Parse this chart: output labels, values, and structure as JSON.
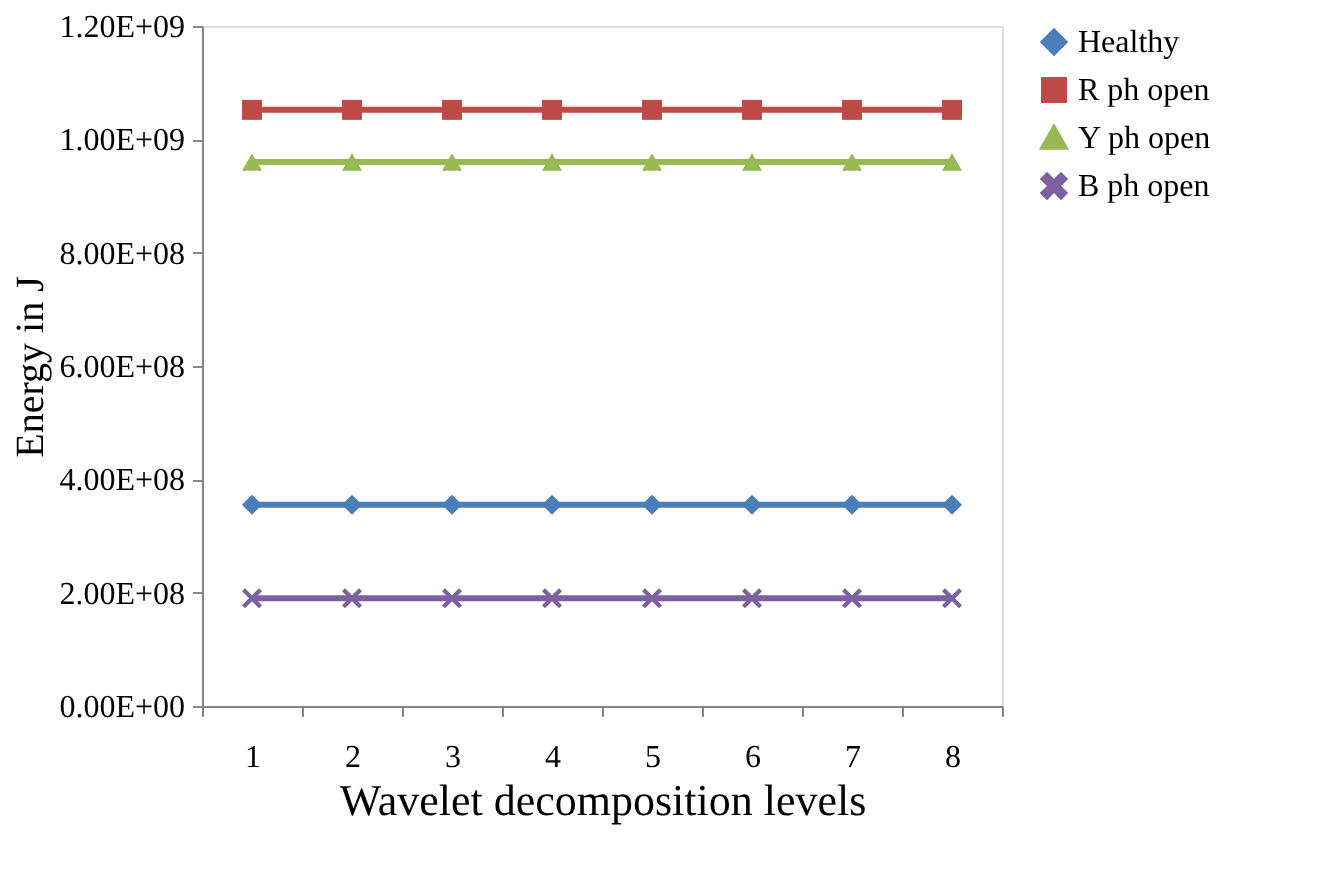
{
  "chart_data": {
    "type": "line",
    "xlabel": "Wavelet decomposition levels",
    "ylabel": "Energy in J",
    "categories": [
      "1",
      "2",
      "3",
      "4",
      "5",
      "6",
      "7",
      "8"
    ],
    "series": [
      {
        "name": "Healthy",
        "color": "#4a7ebb",
        "marker": "diamond",
        "values": [
          355000000,
          355000000,
          355000000,
          355000000,
          355000000,
          355000000,
          355000000,
          355000000
        ]
      },
      {
        "name": "R ph open",
        "color": "#be4b48",
        "marker": "square",
        "values": [
          1052000000,
          1052000000,
          1052000000,
          1052000000,
          1052000000,
          1052000000,
          1052000000,
          1052000000
        ]
      },
      {
        "name": "Y ph open",
        "color": "#98b954",
        "marker": "triangle",
        "values": [
          960000000,
          960000000,
          960000000,
          960000000,
          960000000,
          960000000,
          960000000,
          960000000
        ]
      },
      {
        "name": "B ph open",
        "color": "#7d60a0",
        "marker": "cross",
        "values": [
          190000000,
          190000000,
          190000000,
          190000000,
          190000000,
          190000000,
          190000000,
          190000000
        ]
      }
    ],
    "ylim": [
      0,
      1200000000
    ],
    "yticks": [
      {
        "value": 0,
        "label": "0.00E+00"
      },
      {
        "value": 200000000,
        "label": "2.00E+08"
      },
      {
        "value": 400000000,
        "label": "4.00E+08"
      },
      {
        "value": 600000000,
        "label": "6.00E+08"
      },
      {
        "value": 800000000,
        "label": "8.00E+08"
      },
      {
        "value": 1000000000,
        "label": "1.00E+09"
      },
      {
        "value": 1200000000,
        "label": "1.20E+09"
      }
    ],
    "grid": false,
    "legend": "right",
    "line_style": "solid"
  }
}
